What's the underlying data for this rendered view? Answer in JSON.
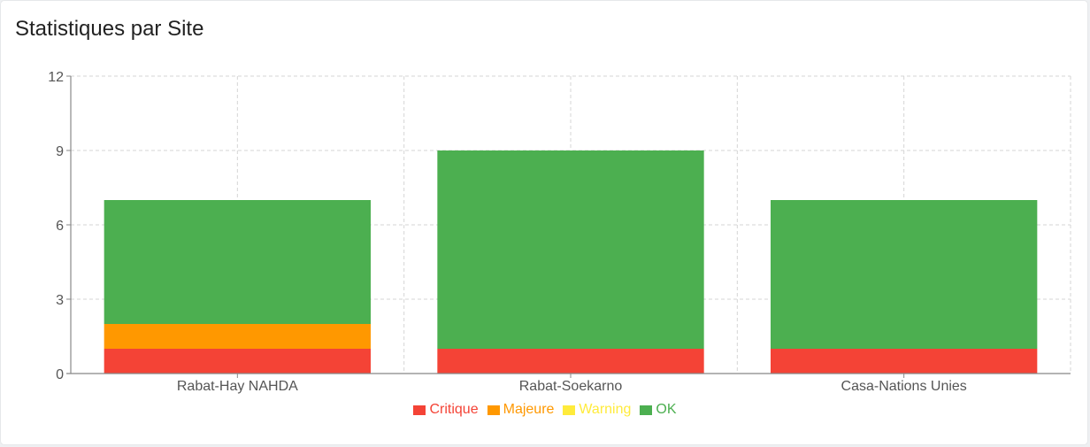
{
  "card": {
    "title": "Statistiques par Site"
  },
  "chart_data": {
    "type": "bar",
    "stacked": true,
    "title": "",
    "xlabel": "",
    "ylabel": "",
    "categories": [
      "Rabat-Hay NAHDA",
      "Rabat-Soekarno",
      "Casa-Nations Unies"
    ],
    "series": [
      {
        "name": "Critique",
        "color": "#f44336",
        "values": [
          1,
          1,
          1
        ]
      },
      {
        "name": "Majeure",
        "color": "#ff9800",
        "values": [
          1,
          0,
          0
        ]
      },
      {
        "name": "Warning",
        "color": "#ffeb3b",
        "values": [
          0,
          0,
          0
        ]
      },
      {
        "name": "OK",
        "color": "#4caf50",
        "values": [
          5,
          8,
          6
        ]
      }
    ],
    "yticks": [
      0,
      3,
      6,
      9,
      12
    ],
    "ylim": [
      0,
      12
    ],
    "grid": true,
    "legend": "bottom"
  }
}
